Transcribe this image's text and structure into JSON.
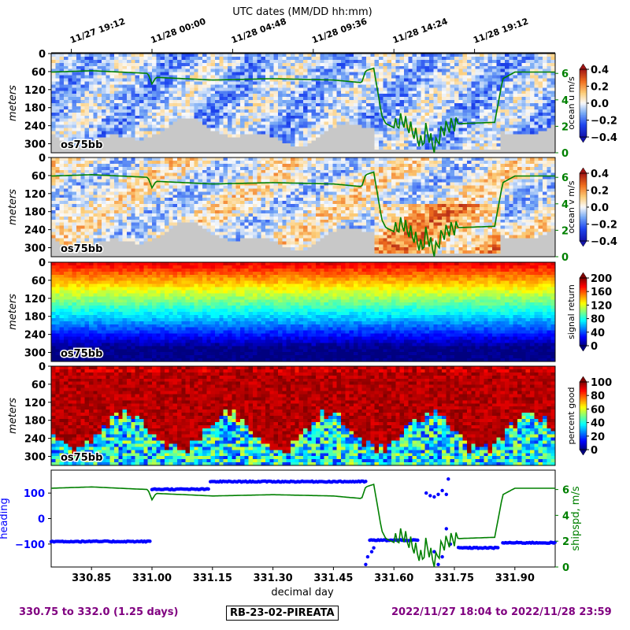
{
  "chart_data": {
    "type": "heatmap",
    "top_axis": {
      "label": "UTC dates (MM/DD hh:mm)",
      "ticks": [
        {
          "x": 330.8,
          "label": "11/27 19:12"
        },
        {
          "x": 331.0,
          "label": "11/28 00:00"
        },
        {
          "x": 331.2,
          "label": "11/28 04:48"
        },
        {
          "x": 331.4,
          "label": "11/28 09:36"
        },
        {
          "x": 331.6,
          "label": "11/28 14:24"
        },
        {
          "x": 331.8,
          "label": "11/28 19:12"
        }
      ]
    },
    "xlim": [
      330.75,
      332.0
    ],
    "xlabel": "decimal day",
    "x_ticks": [
      "330.85",
      "331.00",
      "331.15",
      "331.30",
      "331.45",
      "331.60",
      "331.75",
      "331.90"
    ],
    "x_tick_values": [
      330.85,
      331.0,
      331.15,
      331.3,
      331.45,
      331.6,
      331.75,
      331.9
    ],
    "depth_ticks": [
      "0",
      "60",
      "120",
      "180",
      "240",
      "300"
    ],
    "depth_tick_values": [
      0,
      60,
      120,
      180,
      240,
      300
    ],
    "depth_range": [
      0,
      330
    ],
    "ship_speed": {
      "name": "shipspd, m/s",
      "ylim": [
        0,
        7.5
      ],
      "ticks": [
        "0",
        "2",
        "4",
        "6"
      ],
      "tick_values": [
        0,
        2,
        4,
        6
      ],
      "x": [
        330.75,
        330.85,
        330.99,
        331.0,
        331.01,
        331.15,
        331.3,
        331.45,
        331.52,
        331.53,
        331.55,
        331.57,
        331.58,
        331.6,
        331.62,
        331.65,
        331.67,
        331.68,
        331.7,
        331.72,
        331.74,
        331.76,
        331.85,
        331.87,
        331.9,
        332.0
      ],
      "y": [
        6.1,
        6.2,
        6.0,
        5.2,
        5.7,
        5.5,
        5.6,
        5.5,
        5.3,
        6.2,
        6.4,
        2.8,
        2.2,
        1.9,
        2.5,
        1.5,
        0.6,
        1.8,
        0.3,
        1.7,
        2.1,
        2.2,
        2.3,
        5.6,
        6.1,
        6.1
      ]
    },
    "panels": [
      {
        "ylabel": "meters",
        "instrument": "os75bb",
        "colorbar_label": "ocean u m/s",
        "colorbar_range": [
          -0.4,
          0.4
        ],
        "colorbar_ticks": [
          "0.4",
          "0.2",
          "0.0",
          "−0.2",
          "−0.4"
        ],
        "colormap": "blue-white-red"
      },
      {
        "ylabel": "meters",
        "instrument": "os75bb",
        "colorbar_label": "ocean v m/s",
        "colorbar_range": [
          -0.4,
          0.4
        ],
        "colorbar_ticks": [
          "0.4",
          "0.2",
          "0.0",
          "−0.2",
          "−0.4"
        ],
        "colormap": "blue-white-red"
      },
      {
        "ylabel": "meters",
        "instrument": "os75bb",
        "colorbar_label": "signal return",
        "colorbar_range": [
          0,
          200
        ],
        "colorbar_ticks": [
          "200",
          "160",
          "120",
          "80",
          "40",
          "0"
        ],
        "colormap": "jet"
      },
      {
        "ylabel": "meters",
        "instrument": "os75bb",
        "colorbar_label": "percent good",
        "colorbar_range": [
          0,
          100
        ],
        "colorbar_ticks": [
          "100",
          "80",
          "60",
          "40",
          "20",
          "0"
        ],
        "colormap": "jet"
      }
    ],
    "heading_panel": {
      "ylabel": "heading",
      "ylim": [
        -190,
        190
      ],
      "ticks": [
        "100",
        "0",
        "−100"
      ],
      "tick_values": [
        100,
        0,
        -100
      ],
      "right_label": "shipspd, m/s",
      "heading_segments": [
        {
          "x0": 330.75,
          "x1": 330.995,
          "y": -90
        },
        {
          "x0": 331.0,
          "x1": 331.14,
          "y": 115
        },
        {
          "x0": 331.145,
          "x1": 331.53,
          "y": 145
        },
        {
          "x0": 331.54,
          "x1": 331.66,
          "y": -85
        },
        {
          "x0": 331.76,
          "x1": 331.86,
          "y": -115
        },
        {
          "x0": 331.87,
          "x1": 332.0,
          "y": -95
        }
      ]
    },
    "footer": {
      "left": "330.75 to 332.0 (1.25 days)",
      "center": "RB-23-02-PIREATA",
      "right": "2022/11/27 18:04 to 2022/11/28 23:59"
    }
  }
}
